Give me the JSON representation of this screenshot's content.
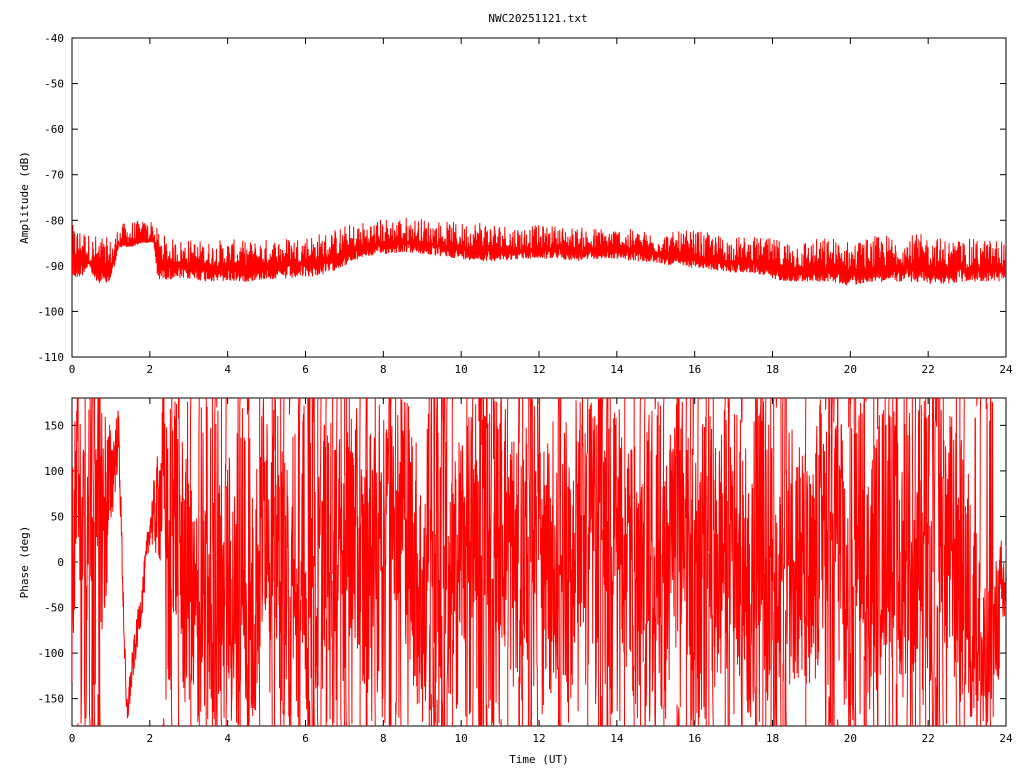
{
  "title": "NWC20251121.txt",
  "colors": {
    "trace": "#ff0000",
    "axis": "#000000",
    "grid": "#999999"
  },
  "chart_data": [
    {
      "type": "line",
      "title": "NWC20251121.txt",
      "xlabel": "",
      "ylabel": "Amplitude (dB)",
      "xlim": [
        0,
        24
      ],
      "ylim": [
        -110,
        -40
      ],
      "xticks": [
        0,
        2,
        4,
        6,
        8,
        10,
        12,
        14,
        16,
        18,
        20,
        22,
        24
      ],
      "yticks": [
        -40,
        -50,
        -60,
        -70,
        -80,
        -90,
        -100,
        -110
      ],
      "grid": false,
      "series": [
        {
          "x": [
            0,
            0.1,
            0.3,
            0.45,
            0.55,
            0.75,
            0.95,
            1.1,
            1.2,
            1.5,
            1.8,
            2.1,
            2.2,
            2.5,
            3,
            3.5,
            4,
            4.5,
            5,
            5.5,
            6,
            6.5,
            7,
            7.5,
            8,
            8.5,
            9,
            9.5,
            10,
            10.5,
            11,
            11.5,
            12,
            12.5,
            13,
            13.5,
            14,
            14.5,
            15,
            15.5,
            16,
            16.5,
            17,
            17.5,
            18,
            18.5,
            19,
            19.5,
            20,
            20.5,
            21,
            21.5,
            22,
            22.5,
            23,
            23.5,
            24
          ],
          "mean": [
            -88,
            -88,
            -87,
            -89,
            -90,
            -91,
            -91,
            -88,
            -85,
            -85,
            -84.5,
            -84.5,
            -89,
            -89.5,
            -89.5,
            -90,
            -90,
            -90,
            -89.5,
            -89.5,
            -89,
            -88.5,
            -87.5,
            -86,
            -85,
            -84.5,
            -85,
            -85.5,
            -86,
            -86,
            -86.5,
            -86.5,
            -86,
            -86,
            -86.5,
            -86.5,
            -86,
            -86.5,
            -87,
            -87.5,
            -88,
            -88.5,
            -89,
            -89,
            -90,
            -90.5,
            -90.5,
            -90.5,
            -91,
            -90.5,
            -90,
            -90,
            -90,
            -90.5,
            -90.5,
            -90.5,
            -90.5
          ],
          "low": [
            -93,
            -93,
            -92,
            -90,
            -93,
            -94,
            -94,
            -90,
            -86,
            -86,
            -85,
            -85,
            -93,
            -93,
            -93,
            -93.5,
            -93.5,
            -93.5,
            -93,
            -93,
            -92.5,
            -92,
            -90,
            -88,
            -87.5,
            -87,
            -87.5,
            -88,
            -88.5,
            -89,
            -89,
            -88.5,
            -88.5,
            -88.5,
            -89,
            -88.5,
            -88.5,
            -89,
            -89.5,
            -90,
            -90.5,
            -91,
            -91.5,
            -91.5,
            -93,
            -93.5,
            -93.5,
            -93.5,
            -94.5,
            -93.5,
            -93.5,
            -93.5,
            -94,
            -94,
            -93.5,
            -93.5,
            -93.5
          ],
          "high": [
            -81,
            -81,
            -82,
            -83,
            -83,
            -83,
            -84,
            -83,
            -81,
            -80,
            -80,
            -79.5,
            -82,
            -84,
            -84,
            -84.5,
            -84,
            -84.5,
            -84,
            -83.5,
            -83,
            -82.5,
            -81,
            -80,
            -79.5,
            -79,
            -79.5,
            -80,
            -80.5,
            -79.5,
            -80.5,
            -81,
            -81,
            -81,
            -81.5,
            -81.5,
            -81.5,
            -82,
            -82.5,
            -82.5,
            -82,
            -83,
            -83.5,
            -83.5,
            -84,
            -84,
            -84,
            -83.5,
            -84.5,
            -83.5,
            -83,
            -83,
            -83,
            -84,
            -84,
            -84,
            -84
          ]
        }
      ]
    },
    {
      "type": "line",
      "title": "",
      "xlabel": "Time (UT)",
      "ylabel": "Phase (deg)",
      "xlim": [
        0,
        24
      ],
      "ylim": [
        -180,
        180
      ],
      "xticks": [
        0,
        2,
        4,
        6,
        8,
        10,
        12,
        14,
        16,
        18,
        20,
        22,
        24
      ],
      "yticks": [
        150,
        100,
        50,
        0,
        -50,
        -100,
        -150
      ],
      "grid": false,
      "series": [
        {
          "wrap": true,
          "x": [
            0,
            0.2,
            0.4,
            0.6,
            0.8,
            1.0,
            1.2,
            1.4,
            1.6,
            1.8,
            2.0,
            2.2,
            2.5,
            3.0,
            3.5,
            4.0,
            4.5,
            5.0,
            5.5,
            6.0,
            6.5,
            7.0,
            7.5,
            8.0,
            8.5,
            9.0,
            9.5,
            10.0,
            10.5,
            11.0,
            11.5,
            12.0,
            12.5,
            13.0,
            13.5,
            14.0,
            14.5,
            15.0,
            15.5,
            16.0,
            16.5,
            17.0,
            17.5,
            18.0,
            18.5,
            19.0,
            19.5,
            20.0,
            20.5,
            21.0,
            21.5,
            22.0,
            22.5,
            23.0,
            23.5,
            23.8,
            24.0
          ],
          "values": [
            -20,
            120,
            60,
            150,
            40,
            90,
            140,
            -170,
            -100,
            -40,
            40,
            60,
            120,
            -60,
            -90,
            -20,
            -120,
            90,
            -40,
            -150,
            30,
            100,
            -30,
            150,
            80,
            -50,
            -140,
            20,
            110,
            60,
            -20,
            120,
            -150,
            60,
            140,
            70,
            -20,
            -120,
            50,
            150,
            -20,
            60,
            -60,
            -120,
            30,
            -50,
            140,
            -110,
            -20,
            60,
            -90,
            150,
            30,
            -30,
            -140,
            -60,
            -20
          ],
          "band": [
            120,
            150,
            150,
            110,
            150,
            60,
            30,
            20,
            20,
            20,
            20,
            60,
            150,
            150,
            150,
            150,
            150,
            150,
            150,
            150,
            150,
            150,
            150,
            150,
            150,
            150,
            150,
            150,
            150,
            150,
            150,
            150,
            150,
            150,
            150,
            150,
            150,
            150,
            150,
            150,
            150,
            150,
            150,
            150,
            150,
            150,
            150,
            150,
            150,
            150,
            150,
            150,
            150,
            150,
            100,
            80,
            60
          ]
        }
      ]
    }
  ]
}
